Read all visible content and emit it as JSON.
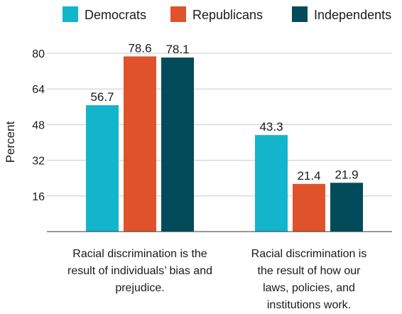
{
  "chart_data": {
    "type": "bar",
    "title": "",
    "xlabel": "",
    "ylabel": "Percent",
    "ylim": [
      0,
      80
    ],
    "yticks": [
      16,
      32,
      48,
      64,
      80
    ],
    "grid": true,
    "legend_position": "top",
    "categories": [
      "Racial discrimination is the result of individuals’ bias and prejudice.",
      "Racial discrimination is the result of how our laws, policies, and institutions work."
    ],
    "category_lines": [
      [
        "Racial discrimination is the",
        "result of individuals’ bias and",
        "prejudice."
      ],
      [
        "Racial discrimination is",
        "the result of how our",
        "laws, policies, and",
        "institutions work."
      ]
    ],
    "series": [
      {
        "name": "Democrats",
        "color": "#13b5cc",
        "values": [
          56.7,
          43.3
        ]
      },
      {
        "name": "Republicans",
        "color": "#e0522b",
        "values": [
          78.6,
          21.4
        ]
      },
      {
        "name": "Independents",
        "color": "#024b5a",
        "values": [
          78.1,
          21.9
        ]
      }
    ]
  }
}
